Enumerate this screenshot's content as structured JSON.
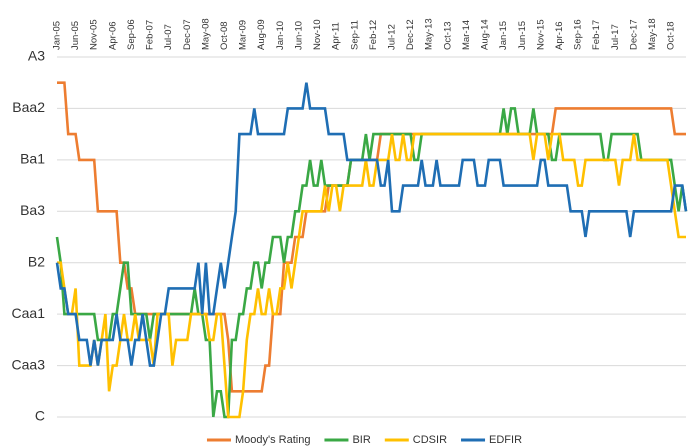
{
  "chart_data": {
    "type": "line",
    "categories": [
      "Jan-05",
      null,
      null,
      null,
      null,
      "Jun-05",
      null,
      null,
      null,
      null,
      "Nov-05",
      null,
      null,
      null,
      null,
      "Apr-06",
      null,
      null,
      null,
      null,
      "Sep-06",
      null,
      null,
      null,
      null,
      "Feb-07",
      null,
      null,
      null,
      null,
      "Jul-07",
      null,
      null,
      null,
      null,
      "Dec-07",
      null,
      null,
      null,
      null,
      "May-08",
      null,
      null,
      null,
      null,
      "Oct-08",
      null,
      null,
      null,
      null,
      "Mar-09",
      null,
      null,
      null,
      null,
      "Aug-09",
      null,
      null,
      null,
      null,
      "Jan-10",
      null,
      null,
      null,
      null,
      "Jun-10",
      null,
      null,
      null,
      null,
      "Nov-10",
      null,
      null,
      null,
      null,
      "Apr-11",
      null,
      null,
      null,
      null,
      "Sep-11",
      null,
      null,
      null,
      null,
      "Feb-12",
      null,
      null,
      null,
      null,
      "Jul-12",
      null,
      null,
      null,
      null,
      "Dec-12",
      null,
      null,
      null,
      null,
      "May-13",
      null,
      null,
      null,
      null,
      "Oct-13",
      null,
      null,
      null,
      null,
      "Mar-14",
      null,
      null,
      null,
      null,
      "Aug-14",
      null,
      null,
      null,
      null,
      "Jan-15",
      null,
      null,
      null,
      null,
      "Jun-15",
      null,
      null,
      null,
      null,
      "Nov-15",
      null,
      null,
      null,
      null,
      "Apr-16",
      null,
      null,
      null,
      null,
      "Sep-16",
      null,
      null,
      null,
      null,
      "Feb-17",
      null,
      null,
      null,
      null,
      "Jul-17",
      null,
      null,
      null,
      null,
      "Dec-17",
      null,
      null,
      null,
      null,
      "May-18",
      null,
      null,
      null,
      null,
      "Oct-18",
      null,
      null,
      null,
      null
    ],
    "series": [
      {
        "name": "Moody's Rating",
        "color": "#ed7d31",
        "values": [
          13,
          13,
          13,
          11,
          11,
          11,
          10,
          10,
          10,
          10,
          10,
          8,
          8,
          8,
          8,
          8,
          8,
          6,
          6,
          5,
          5,
          4,
          4,
          4,
          4,
          4,
          4,
          4,
          4,
          4,
          4,
          4,
          4,
          4,
          4,
          4,
          4,
          4,
          4,
          4,
          4,
          4,
          4,
          4,
          4,
          4,
          3,
          1,
          1,
          1,
          1,
          1,
          1,
          1,
          1,
          1,
          2,
          2,
          4,
          4,
          4,
          6,
          6,
          6,
          7,
          7,
          7,
          8,
          8,
          8,
          8,
          8,
          8,
          9,
          9,
          9,
          9,
          9,
          9,
          10,
          10,
          10,
          10,
          10,
          10,
          10,
          10,
          11,
          11,
          11,
          11,
          11,
          11,
          11,
          11,
          11,
          11,
          11,
          11,
          11,
          11,
          11,
          11,
          11,
          11,
          11,
          11,
          11,
          11,
          11,
          11,
          11,
          11,
          11,
          11,
          11,
          11,
          11,
          11,
          11,
          11,
          11,
          11,
          11,
          11,
          11,
          11,
          11,
          11,
          11,
          11,
          11,
          11,
          11,
          12,
          12,
          12,
          12,
          12,
          12,
          12,
          12,
          12,
          12,
          12,
          12,
          12,
          12,
          12,
          12,
          12,
          12,
          12,
          12,
          12,
          12,
          12,
          12,
          12,
          12,
          12,
          12,
          12,
          12,
          12,
          12,
          11,
          11,
          11,
          11
        ]
      },
      {
        "name": "BIR",
        "color": "#3aa845",
        "values": [
          7,
          6,
          4,
          4,
          4,
          4,
          4,
          4,
          4,
          4,
          4,
          3,
          3,
          3,
          3,
          4,
          4,
          5,
          6,
          6,
          4,
          4,
          4,
          4,
          4,
          3,
          4,
          4,
          4,
          4,
          4,
          4,
          4,
          4,
          4,
          4,
          4,
          5,
          4,
          4,
          3,
          3,
          0,
          1,
          1,
          0,
          0,
          3,
          3,
          4,
          4,
          5,
          5,
          6,
          6,
          5,
          6,
          6,
          7,
          7,
          7,
          6,
          7,
          7,
          8,
          8,
          9,
          9,
          10,
          9,
          9,
          10,
          9,
          9,
          9,
          9,
          9,
          9,
          9,
          10,
          10,
          10,
          10,
          11,
          10,
          11,
          11,
          11,
          11,
          11,
          11,
          11,
          11,
          11,
          11,
          11,
          10,
          10,
          11,
          11,
          11,
          11,
          11,
          11,
          11,
          11,
          11,
          11,
          11,
          11,
          11,
          11,
          11,
          11,
          11,
          11,
          11,
          11,
          11,
          11,
          12,
          11,
          12,
          12,
          11,
          11,
          11,
          11,
          12,
          11,
          11,
          11,
          11,
          10,
          10,
          11,
          11,
          11,
          11,
          11,
          11,
          11,
          11,
          11,
          11,
          11,
          11,
          10,
          10,
          11,
          11,
          11,
          11,
          11,
          11,
          11,
          11,
          10,
          10,
          10,
          10,
          10,
          10,
          10,
          10,
          10,
          9,
          8,
          9,
          8
        ]
      },
      {
        "name": "CDSIR",
        "color": "#ffc000",
        "values": [
          6,
          6,
          5,
          4,
          4,
          5,
          2,
          2,
          2,
          2,
          3,
          2,
          3,
          4,
          1,
          2,
          2,
          3,
          4,
          3,
          3,
          4,
          3,
          3,
          3,
          3,
          2,
          4,
          4,
          4,
          4,
          2,
          3,
          3,
          3,
          3,
          4,
          4,
          4,
          4,
          4,
          3,
          3,
          4,
          4,
          2,
          0,
          0,
          0,
          0,
          1,
          3,
          4,
          4,
          5,
          4,
          4,
          5,
          4,
          4,
          5,
          5,
          6,
          5,
          6,
          7,
          8,
          8,
          8,
          8,
          8,
          8,
          9,
          8,
          9,
          9,
          8,
          9,
          9,
          9,
          9,
          9,
          9,
          10,
          9,
          9,
          10,
          10,
          10,
          10,
          11,
          10,
          10,
          11,
          10,
          10,
          11,
          11,
          11,
          11,
          11,
          11,
          11,
          11,
          11,
          11,
          11,
          11,
          11,
          11,
          11,
          11,
          11,
          11,
          11,
          11,
          11,
          11,
          11,
          11,
          11,
          11,
          11,
          11,
          11,
          11,
          11,
          11,
          10,
          11,
          11,
          11,
          10,
          11,
          11,
          11,
          10,
          10,
          10,
          10,
          9,
          9,
          10,
          10,
          10,
          10,
          10,
          10,
          10,
          10,
          10,
          9,
          10,
          10,
          10,
          11,
          10,
          10,
          10,
          10,
          10,
          10,
          10,
          10,
          10,
          9,
          8,
          7,
          7,
          7
        ]
      },
      {
        "name": "EDFIR",
        "color": "#1f6eb4",
        "values": [
          6,
          5,
          5,
          4,
          4,
          4,
          3,
          3,
          3,
          2,
          3,
          2,
          3,
          3,
          3,
          3,
          4,
          3,
          3,
          3,
          2,
          3,
          3,
          4,
          3,
          2,
          2,
          3,
          4,
          4,
          5,
          5,
          5,
          5,
          5,
          5,
          5,
          5,
          6,
          4,
          6,
          4,
          4,
          5,
          6,
          5,
          6,
          7,
          8,
          11,
          11,
          11,
          11,
          12,
          11,
          11,
          11,
          11,
          11,
          11,
          11,
          11,
          12,
          12,
          12,
          12,
          12,
          13,
          12,
          12,
          12,
          12,
          12,
          11,
          11,
          11,
          11,
          11,
          10,
          10,
          10,
          10,
          10,
          10,
          10,
          10,
          10,
          9,
          9,
          10,
          8,
          8,
          8,
          9,
          9,
          9,
          9,
          9,
          10,
          9,
          9,
          9,
          10,
          9,
          9,
          9,
          9,
          9,
          9,
          10,
          10,
          10,
          10,
          9,
          9,
          9,
          10,
          10,
          10,
          10,
          9,
          9,
          9,
          9,
          9,
          9,
          9,
          9,
          9,
          9,
          10,
          10,
          9,
          9,
          9,
          9,
          9,
          9,
          8,
          8,
          8,
          8,
          7,
          8,
          8,
          8,
          8,
          8,
          8,
          8,
          8,
          8,
          8,
          8,
          7,
          8,
          8,
          8,
          8,
          8,
          8,
          8,
          8,
          8,
          8,
          8,
          9,
          9,
          9,
          8
        ]
      }
    ],
    "ylim": [
      0,
      14
    ],
    "yticks": [
      {
        "value": 0,
        "label": "C"
      },
      {
        "value": 2,
        "label": "Caa3"
      },
      {
        "value": 4,
        "label": "Caa1"
      },
      {
        "value": 6,
        "label": "B2"
      },
      {
        "value": 8,
        "label": "Ba3"
      },
      {
        "value": 10,
        "label": "Ba1"
      },
      {
        "value": 12,
        "label": "Baa2"
      },
      {
        "value": 14,
        "label": "A3"
      }
    ],
    "grid": true,
    "legend": "bottom"
  }
}
